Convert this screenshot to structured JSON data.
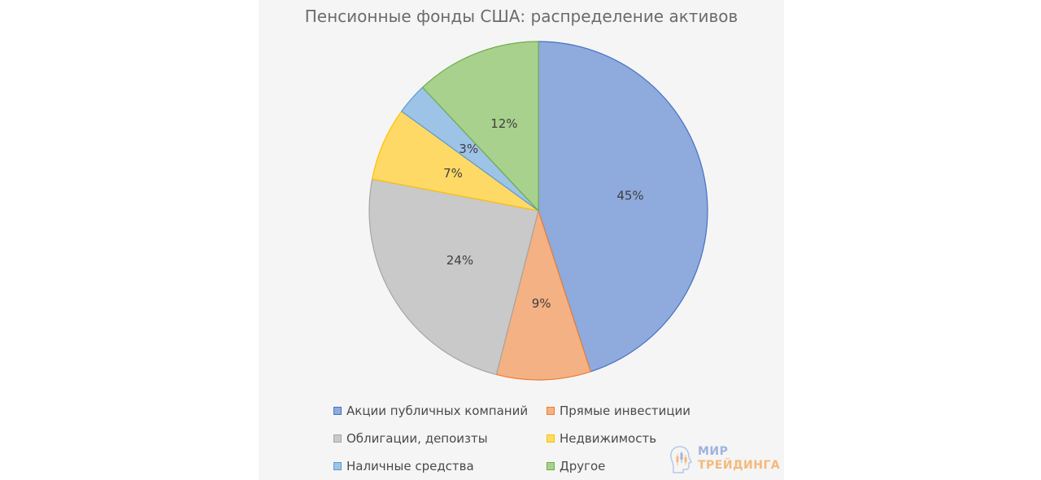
{
  "chart_data": {
    "type": "pie",
    "title": "Пенсионные фонды США: распределение активов",
    "categories": [
      "Акции публичных компаний",
      "Прямые инвестиции",
      "Облигации, депоизты",
      "Недвижимость",
      "Наличные средства",
      "Другое"
    ],
    "values": [
      45,
      9,
      24,
      7,
      3,
      12
    ],
    "data_labels": [
      "45%",
      "9%",
      "24%",
      "7%",
      "3%",
      "12%"
    ],
    "colors": [
      "#8faadc",
      "#f4b183",
      "#c9c9c9",
      "#ffd966",
      "#9dc3e6",
      "#a9d18e"
    ],
    "stroke_colors": [
      "#4472c4",
      "#ed7d31",
      "#a5a5a5",
      "#ffc000",
      "#5b9bd5",
      "#70ad47"
    ],
    "legend_position": "bottom"
  },
  "logo": {
    "line1": "МИР",
    "line2": "ТРЕЙДИНГА"
  }
}
